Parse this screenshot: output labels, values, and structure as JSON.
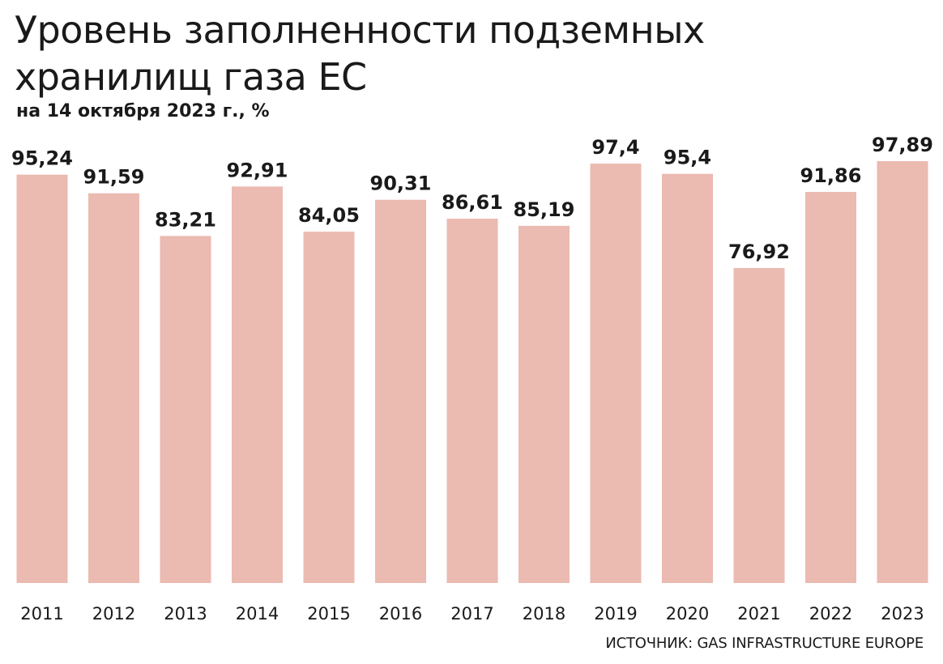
{
  "header": {
    "title": "Уровень заполненности подземных хранилищ газа ЕС",
    "subtitle": "на 14 октября 2023 г., %"
  },
  "footer": {
    "source": "ИСТОЧНИК: GAS INFRASTRUCTURE EUROPE"
  },
  "colors": {
    "bar": "#ebbab1",
    "text": "#1a1a1a"
  },
  "chart_data": {
    "type": "bar",
    "title": "Уровень заполненности подземных хранилищ газа ЕС",
    "subtitle": "на 14 октября 2023 г., %",
    "xlabel": "",
    "ylabel": "",
    "categories": [
      "2011",
      "2012",
      "2013",
      "2014",
      "2015",
      "2016",
      "2017",
      "2018",
      "2019",
      "2020",
      "2021",
      "2022",
      "2023"
    ],
    "values": [
      95.24,
      91.59,
      83.21,
      92.91,
      84.05,
      90.31,
      86.61,
      85.19,
      97.4,
      95.4,
      76.92,
      91.86,
      97.89
    ],
    "value_labels": [
      "95,24",
      "91,59",
      "83,21",
      "92,91",
      "84,05",
      "90,31",
      "86,61",
      "85,19",
      "97,4",
      "95,4",
      "76,92",
      "91,86",
      "97,89"
    ],
    "ylim": [
      0,
      100
    ],
    "grid": false,
    "legend": "none"
  }
}
